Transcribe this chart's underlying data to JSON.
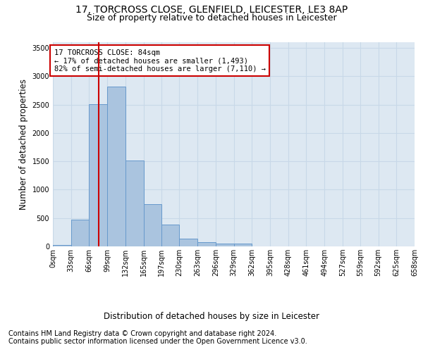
{
  "title_line1": "17, TORCROSS CLOSE, GLENFIELD, LEICESTER, LE3 8AP",
  "title_line2": "Size of property relative to detached houses in Leicester",
  "xlabel": "Distribution of detached houses by size in Leicester",
  "ylabel": "Number of detached properties",
  "footer_line1": "Contains HM Land Registry data © Crown copyright and database right 2024.",
  "footer_line2": "Contains public sector information licensed under the Open Government Licence v3.0.",
  "annotation_line1": "17 TORCROSS CLOSE: 84sqm",
  "annotation_line2": "← 17% of detached houses are smaller (1,493)",
  "annotation_line3": "82% of semi-detached houses are larger (7,110) →",
  "bar_edges": [
    0,
    33,
    66,
    99,
    132,
    165,
    197,
    230,
    263,
    296,
    329,
    362,
    395,
    428,
    461,
    494,
    527,
    559,
    592,
    625,
    658
  ],
  "bar_heights": [
    30,
    475,
    2510,
    2820,
    1520,
    745,
    385,
    140,
    75,
    55,
    55,
    0,
    0,
    0,
    0,
    0,
    0,
    0,
    0,
    0
  ],
  "bar_color": "#aac4df",
  "bar_edgecolor": "#6699cc",
  "grid_color": "#c8d8e8",
  "background_color": "#dde8f2",
  "vline_x": 84,
  "vline_color": "#cc0000",
  "ylim": [
    0,
    3600
  ],
  "yticks": [
    0,
    500,
    1000,
    1500,
    2000,
    2500,
    3000,
    3500
  ],
  "annotation_box_edgecolor": "#cc0000",
  "annotation_box_facecolor": "#ffffff",
  "tick_label_fontsize": 7,
  "axis_label_fontsize": 8.5,
  "title1_fontsize": 10,
  "title2_fontsize": 9,
  "footer_fontsize": 7,
  "annotation_fontsize": 7.5
}
